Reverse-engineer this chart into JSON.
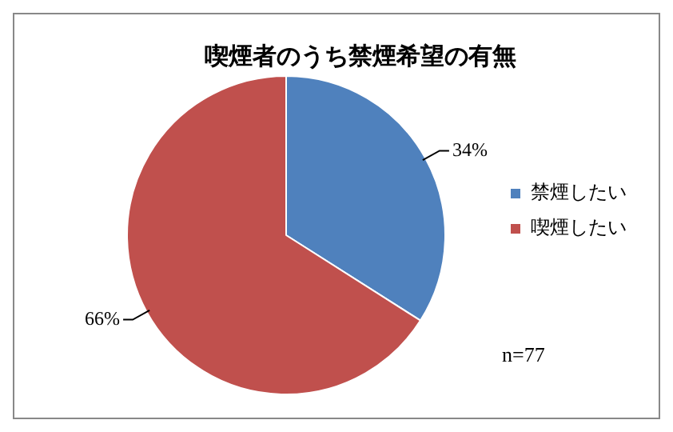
{
  "chart_data": {
    "type": "pie",
    "title": "喫煙者のうち禁煙希望の有無",
    "categories": [
      "禁煙したい",
      "喫煙したい"
    ],
    "values": [
      34,
      66
    ],
    "colors": [
      "#4f81bd",
      "#c0504d"
    ],
    "value_labels": [
      "34%",
      "66%"
    ],
    "legend": "right",
    "annotations": [
      "n=77"
    ]
  }
}
